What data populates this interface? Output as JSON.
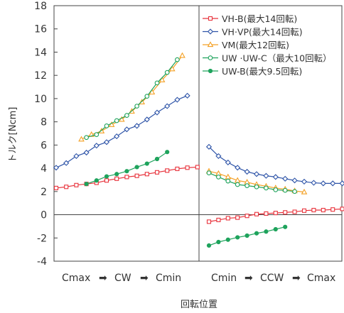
{
  "chart_data": {
    "type": "line",
    "xlabel": "回転位置",
    "ylabel": "トルク[Ncm]",
    "ylim": [
      -4,
      18
    ],
    "yticks": [
      "18",
      "16",
      "14",
      "12",
      "10",
      "8",
      "6",
      "4",
      "2",
      "0",
      "-2",
      "-4"
    ],
    "grid": false,
    "legend_position": "top-right",
    "segment_labels": {
      "left": [
        "Cmax",
        "➡",
        "CW",
        "➡",
        "Cmin"
      ],
      "right": [
        "Cmin",
        "➡",
        "CCW",
        "➡",
        "Cmax"
      ]
    },
    "series": [
      {
        "name": "VH-B(最大14回転)",
        "color": "#e8333c",
        "marker": "square",
        "left": [
          [
            0,
            2.3
          ],
          [
            1,
            2.4
          ],
          [
            2,
            2.55
          ],
          [
            3,
            2.65
          ],
          [
            4,
            2.75
          ],
          [
            5,
            2.95
          ],
          [
            6,
            3.1
          ],
          [
            7,
            3.25
          ],
          [
            8,
            3.35
          ],
          [
            9,
            3.5
          ],
          [
            10,
            3.65
          ],
          [
            11,
            3.8
          ],
          [
            12,
            3.95
          ],
          [
            13,
            4.05
          ],
          [
            14,
            4.1
          ]
        ],
        "right": [
          [
            0,
            -0.6
          ],
          [
            1,
            -0.45
          ],
          [
            2,
            -0.3
          ],
          [
            3,
            -0.25
          ],
          [
            4,
            -0.1
          ],
          [
            5,
            0.05
          ],
          [
            6,
            0.1
          ],
          [
            7,
            0.15
          ],
          [
            8,
            0.2
          ],
          [
            9,
            0.25
          ],
          [
            10,
            0.35
          ],
          [
            11,
            0.4
          ],
          [
            12,
            0.4
          ],
          [
            13,
            0.45
          ],
          [
            14,
            0.5
          ]
        ]
      },
      {
        "name": "VH·VP(最大14回転)",
        "color": "#2e54a8",
        "marker": "diamond",
        "left": [
          [
            0,
            4.05
          ],
          [
            1,
            4.45
          ],
          [
            2,
            5.05
          ],
          [
            3,
            5.35
          ],
          [
            4,
            5.95
          ],
          [
            5,
            6.25
          ],
          [
            6,
            6.75
          ],
          [
            7,
            7.35
          ],
          [
            8,
            7.65
          ],
          [
            9,
            8.2
          ],
          [
            10,
            8.8
          ],
          [
            11,
            9.35
          ],
          [
            12,
            9.9
          ],
          [
            13,
            10.25
          ]
        ],
        "right": [
          [
            0,
            5.85
          ],
          [
            1,
            5.05
          ],
          [
            2,
            4.5
          ],
          [
            3,
            4.05
          ],
          [
            4,
            3.7
          ],
          [
            5,
            3.5
          ],
          [
            6,
            3.35
          ],
          [
            7,
            3.25
          ],
          [
            8,
            3.1
          ],
          [
            9,
            2.95
          ],
          [
            10,
            2.85
          ],
          [
            11,
            2.75
          ],
          [
            12,
            2.7
          ],
          [
            13,
            2.7
          ],
          [
            14,
            2.7
          ]
        ]
      },
      {
        "name": "VM(最大12回転)",
        "color": "#f4a024",
        "marker": "triangle",
        "left": [
          [
            2.5,
            6.5
          ],
          [
            3.5,
            6.9
          ],
          [
            4.5,
            7.2
          ],
          [
            5.5,
            7.75
          ],
          [
            6.5,
            8.2
          ],
          [
            7.5,
            8.9
          ],
          [
            8.5,
            9.7
          ],
          [
            9.5,
            10.55
          ],
          [
            10.5,
            11.6
          ],
          [
            11.5,
            12.55
          ],
          [
            12.5,
            13.7
          ]
        ],
        "right": [
          [
            0,
            3.75
          ],
          [
            1,
            3.55
          ],
          [
            2,
            3.25
          ],
          [
            3,
            2.95
          ],
          [
            4,
            2.8
          ],
          [
            5,
            2.6
          ],
          [
            6,
            2.45
          ],
          [
            7,
            2.3
          ],
          [
            8,
            2.2
          ],
          [
            9,
            2.05
          ],
          [
            10,
            1.95
          ]
        ]
      },
      {
        "name": "UW ·UW-C（最大10回転）",
        "color": "#1ea35c",
        "marker": "circle-open",
        "left": [
          [
            3,
            6.65
          ],
          [
            4,
            6.9
          ],
          [
            5,
            7.65
          ],
          [
            6,
            8.1
          ],
          [
            7,
            8.55
          ],
          [
            8,
            9.35
          ],
          [
            9,
            10.2
          ],
          [
            10,
            11.35
          ],
          [
            11,
            12.25
          ],
          [
            12,
            13.35
          ]
        ],
        "right": [
          [
            0,
            3.6
          ],
          [
            1,
            3.25
          ],
          [
            2,
            2.9
          ],
          [
            3,
            2.6
          ],
          [
            4,
            2.5
          ],
          [
            5,
            2.4
          ],
          [
            6,
            2.3
          ],
          [
            7,
            2.15
          ],
          [
            8,
            2.1
          ],
          [
            9,
            2.0
          ]
        ]
      },
      {
        "name": "UW-B(最大9.5回転)",
        "color": "#1ea35c",
        "marker": "circle-filled",
        "left": [
          [
            3,
            2.65
          ],
          [
            4,
            2.95
          ],
          [
            5,
            3.3
          ],
          [
            6,
            3.5
          ],
          [
            7,
            3.75
          ],
          [
            8,
            4.1
          ],
          [
            9,
            4.4
          ],
          [
            10,
            4.8
          ],
          [
            11,
            5.4
          ]
        ],
        "right": [
          [
            0,
            -2.65
          ],
          [
            1,
            -2.35
          ],
          [
            2,
            -2.15
          ],
          [
            3,
            -1.95
          ],
          [
            4,
            -1.8
          ],
          [
            5,
            -1.6
          ],
          [
            6,
            -1.45
          ],
          [
            7,
            -1.25
          ],
          [
            8,
            -1.05
          ]
        ]
      }
    ]
  }
}
